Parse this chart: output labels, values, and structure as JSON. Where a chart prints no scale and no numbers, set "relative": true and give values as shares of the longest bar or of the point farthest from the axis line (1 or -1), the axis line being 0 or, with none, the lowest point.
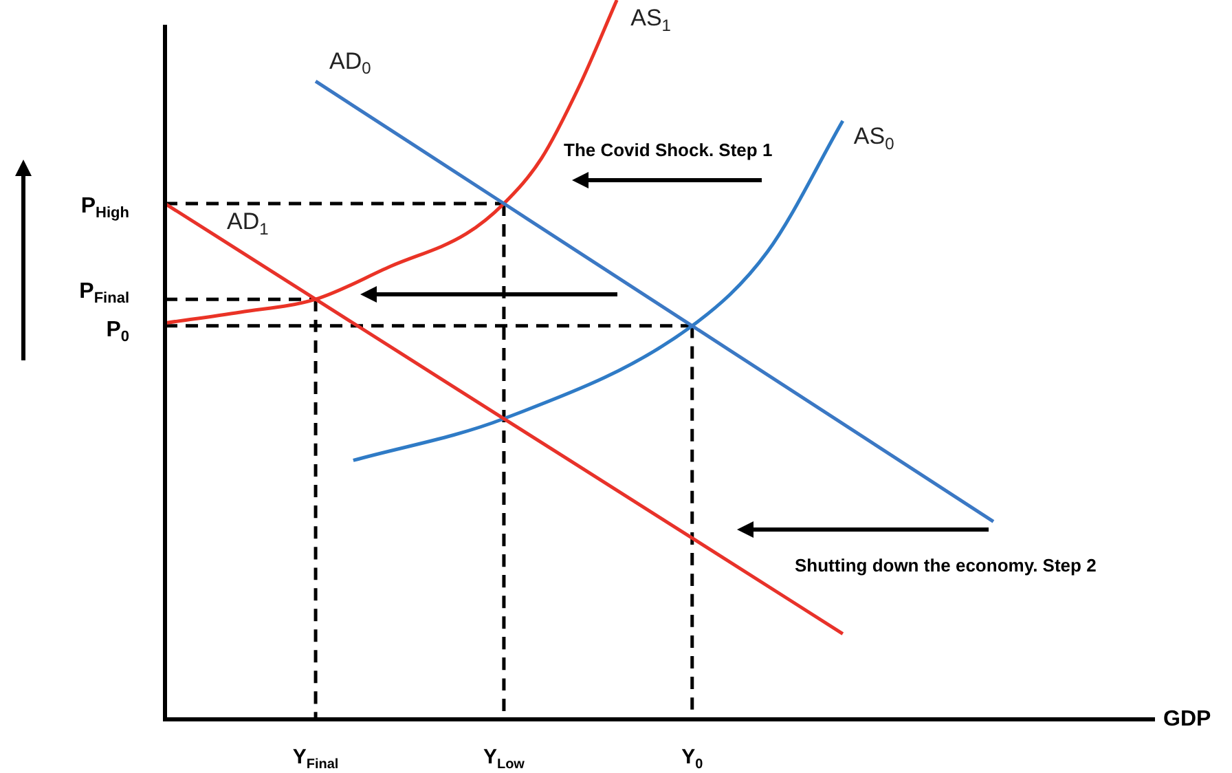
{
  "chart_data": {
    "type": "line",
    "relative": true,
    "xlabel": "GDP",
    "categories": [
      null,
      null,
      null,
      null,
      "Y$_{Final}$",
      null,
      null,
      null,
      null,
      "Y$_{Low}$",
      null,
      null,
      null,
      null,
      "Y$_{0}$",
      null,
      null,
      null,
      null,
      null,
      null,
      null,
      null,
      null,
      null,
      null,
      null
    ],
    "tick_labels": "x",
    "grid": false,
    "legend": false,
    "marker": "none",
    "series": [
      {
        "name": "AD$_{0}$",
        "color": "#3b78c4",
        "values": [
          null,
          null,
          null,
          null,
          0.887,
          null,
          null,
          null,
          null,
          0.717,
          null,
          null,
          null,
          null,
          0.547,
          null,
          null,
          null,
          null,
          null,
          null,
          null,
          0.275,
          null,
          null,
          null,
          null
        ]
      },
      {
        "name": "AD$_{1}$",
        "color": "#e8322a",
        "values": [
          0.717,
          null,
          null,
          null,
          0.584,
          null,
          null,
          null,
          null,
          0.418,
          null,
          null,
          null,
          null,
          0.252,
          null,
          null,
          null,
          0.119,
          null,
          null,
          null,
          null,
          null,
          null,
          null,
          null
        ]
      },
      {
        "name": "AS$_{0}$",
        "color": "#2f7bc6",
        "values": [
          null,
          null,
          null,
          null,
          null,
          0.36,
          null,
          null,
          null,
          0.418,
          null,
          null,
          null,
          null,
          0.547,
          null,
          0.65,
          null,
          0.832,
          null,
          null,
          null,
          null,
          null,
          null,
          null,
          null
        ]
      },
      {
        "name": "AS$_{1}$",
        "color": "#ea3326",
        "values": [
          0.551,
          null,
          0.566,
          null,
          0.584,
          null,
          0.63,
          null,
          0.675,
          0.717,
          0.78,
          0.88,
          1.0,
          null,
          null,
          null,
          null,
          null,
          null,
          null,
          null,
          null,
          null,
          null,
          null,
          null,
          null
        ]
      },
      {
        "color": "#000000",
        "line_style": "dashed",
        "values": [
          0.717,
          null,
          null,
          null,
          null,
          null,
          null,
          null,
          null,
          0.717,
          null,
          null,
          null,
          null,
          null,
          null,
          null,
          null,
          null,
          null,
          null,
          null,
          null,
          null,
          null,
          null,
          null
        ]
      },
      {
        "color": "#000000",
        "line_style": "dashed",
        "values": [
          0.584,
          null,
          null,
          null,
          0.584,
          null,
          null,
          null,
          null,
          null,
          null,
          null,
          null,
          null,
          null,
          null,
          null,
          null,
          null,
          null,
          null,
          null,
          null,
          null,
          null,
          null,
          null
        ]
      },
      {
        "color": "#000000",
        "line_style": "dashed",
        "values": [
          0.547,
          null,
          null,
          null,
          null,
          null,
          null,
          null,
          null,
          null,
          null,
          null,
          null,
          null,
          0.547,
          null,
          null,
          null,
          null,
          null,
          null,
          null,
          null,
          null,
          null,
          null,
          null
        ]
      },
      {
        "color": "#000000",
        "line_style": "dashed",
        "x": [
          "Y$_{Low}$",
          "Y$_{Low}$"
        ],
        "values": [
          0.717,
          0
        ]
      },
      {
        "color": "#000000",
        "line_style": "dashed",
        "x": [
          "Y$_{Final}$",
          "Y$_{Final}$"
        ],
        "values": [
          0.584,
          0
        ]
      },
      {
        "color": "#000000",
        "line_style": "dashed",
        "x": [
          "Y$_{0}$",
          "Y$_{0}$"
        ],
        "values": [
          0.547,
          0
        ]
      }
    ],
    "annotations": [
      "P$_{High}$",
      "P$_{Final}$",
      "P$_{0}$",
      "The Covid Shock. Step 1",
      "Shutting down the economy. Step 2"
    ]
  }
}
